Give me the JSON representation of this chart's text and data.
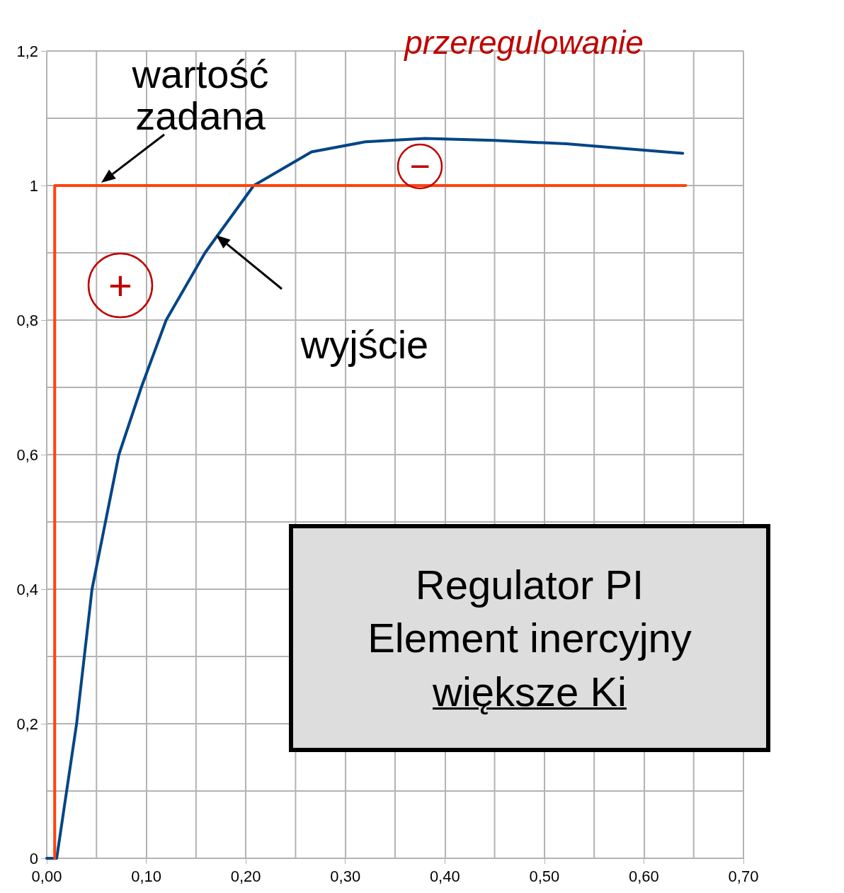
{
  "chart_data": {
    "type": "line",
    "xlim": [
      0,
      0.7
    ],
    "xticks": [
      {
        "value": 0,
        "label": "0,00"
      },
      {
        "value": 0.1,
        "label": "0,10"
      },
      {
        "value": 0.2,
        "label": "0,20"
      },
      {
        "value": 0.3,
        "label": "0,30"
      },
      {
        "value": 0.4,
        "label": "0,40"
      },
      {
        "value": 0.5,
        "label": "0,50"
      },
      {
        "value": 0.6,
        "label": "0,60"
      },
      {
        "value": 0.7,
        "label": "0,70"
      }
    ],
    "ylim": [
      0,
      1.2
    ],
    "yticks": [
      0,
      {
        "value": 0.2,
        "label": "0,2"
      },
      {
        "value": 0.4,
        "label": "0,4"
      },
      {
        "value": 0.6,
        "label": "0,6"
      },
      {
        "value": 0.8,
        "label": "0,8"
      },
      1,
      {
        "value": 1.2,
        "label": "1,2"
      }
    ],
    "grid": true,
    "marker": "none",
    "line_style": "solid",
    "series": [
      {
        "color": "#ff420e",
        "x": [
          0.008,
          0.008,
          0.642
        ],
        "values": [
          0,
          1,
          1
        ]
      },
      {
        "color": "#004586",
        "x": [
          0,
          0.01,
          0.03,
          0.0455,
          0.0725,
          0.095,
          0.12,
          0.159,
          0.208,
          0.266,
          0.32,
          0.38,
          0.45,
          0.522,
          0.58,
          0.639
        ],
        "values": [
          0,
          0,
          0.2,
          0.4,
          0.6,
          0.7,
          0.8,
          0.9,
          1.0,
          1.05,
          1.065,
          1.07,
          1.067,
          1.062,
          1.055,
          1.048
        ]
      }
    ],
    "annotations": [
      "wartość\nzadana",
      "wyjście",
      "Regulator PI\nElement inercyjny\nwiększe Ki",
      "przeregulowanie",
      "+",
      "−"
    ]
  }
}
